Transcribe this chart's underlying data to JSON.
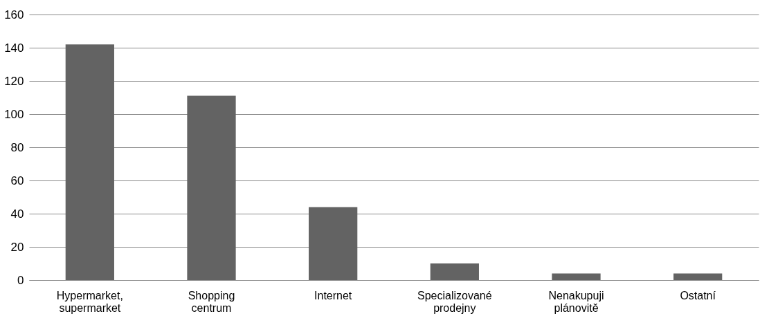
{
  "chart_data": {
    "type": "bar",
    "categories": [
      "Hypermarket, supermarket",
      "Shopping centrum",
      "Internet",
      "Specializované prodejny",
      "Nenakupuji plánovitě",
      "Ostatní"
    ],
    "values": [
      142,
      111,
      44,
      10,
      4,
      4
    ],
    "color": "#636363",
    "ylim": [
      0,
      160
    ],
    "yticks": [
      0,
      20,
      40,
      60,
      80,
      100,
      120,
      140,
      160
    ],
    "grid": "y"
  }
}
